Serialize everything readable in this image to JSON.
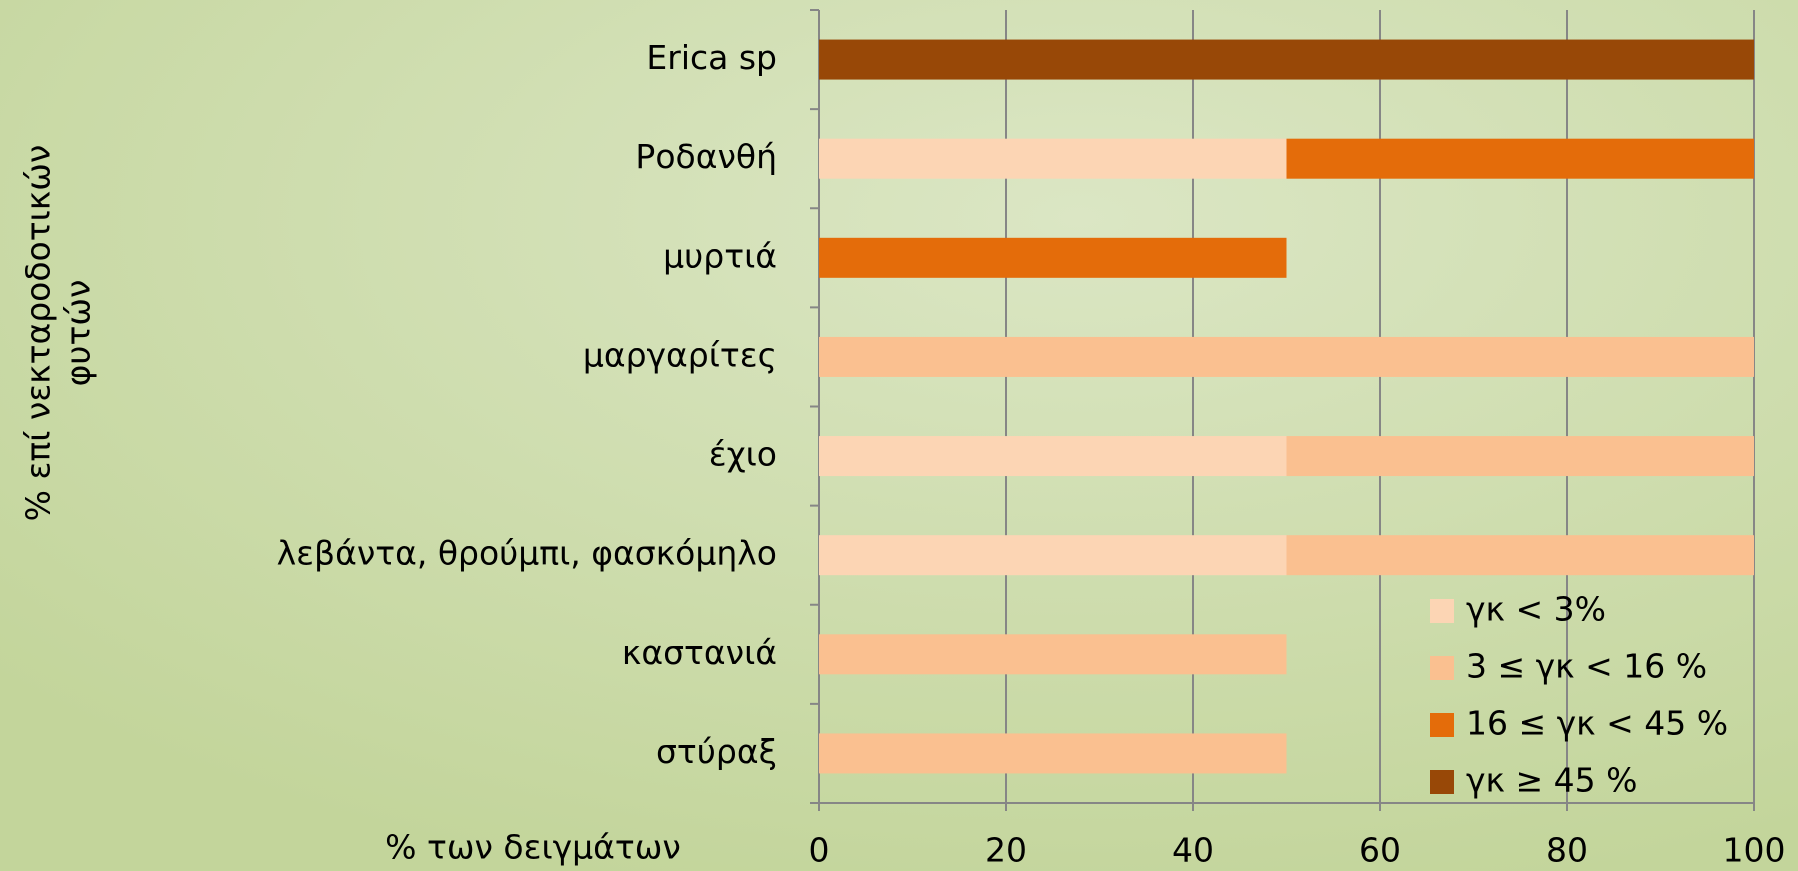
{
  "chart_data": {
    "type": "bar",
    "orientation": "horizontal",
    "stacked": true,
    "y_label": [
      "% επί νεκταροδοτικών",
      "φυτών"
    ],
    "x_label": "% των δειγμάτων",
    "categories": [
      "Erica sp",
      "Ροδανθή",
      "μυρτιά",
      "μαργαρίτες",
      "έχιο",
      "λεβάντα, θρούμπι, φασκόμηλο",
      "καστανιά",
      "στύραξ"
    ],
    "series": [
      {
        "name": "γκ < 3%",
        "color": "#fcd5b4",
        "values": [
          0,
          50,
          0,
          0,
          50,
          50,
          0,
          0
        ]
      },
      {
        "name": "3 ≤ γκ < 16 %",
        "color": "#fac090",
        "values": [
          0,
          0,
          0,
          100,
          50,
          50,
          50,
          50
        ]
      },
      {
        "name": "16 ≤ γκ < 45 %",
        "color": "#e46c0a",
        "values": [
          0,
          50,
          50,
          0,
          0,
          0,
          0,
          0
        ]
      },
      {
        "name": "γκ ≥ 45 %",
        "color": "#984807",
        "values": [
          100,
          0,
          0,
          0,
          0,
          0,
          0,
          0
        ]
      }
    ],
    "xlim": [
      0,
      100
    ],
    "xticks": [
      0,
      20,
      40,
      60,
      80,
      100
    ],
    "grid": true,
    "legend": "lower right"
  }
}
